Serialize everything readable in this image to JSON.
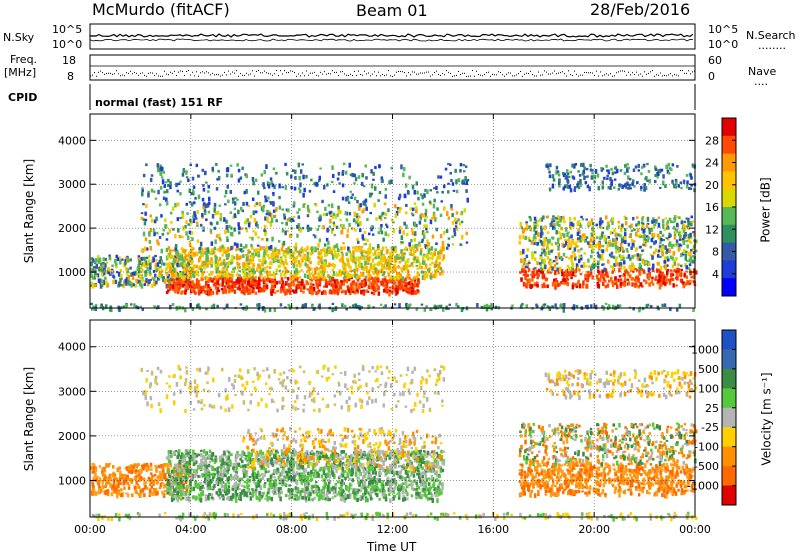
{
  "header": {
    "station": "McMurdo (fitACF)",
    "beam": "Beam 01",
    "date": "28/Feb/2016"
  },
  "aux_labels": {
    "nsky": "N.Sky",
    "nsearch": "N.Search",
    "nsearch_dots": "........",
    "freq": "Freq.",
    "freq_unit": "[MHz]",
    "nave": "Nave",
    "nave_dots": "....",
    "cpid": "CPID",
    "cpid_value": "normal (fast) 151 RF",
    "noise_ticks_left": [
      "10^5",
      "10^0"
    ],
    "noise_ticks_right": [
      "10^5",
      "10^0"
    ],
    "freq_ticks": [
      "18",
      "8"
    ],
    "nave_ticks": [
      "60",
      "0"
    ]
  },
  "chart_data": [
    {
      "type": "heatmap",
      "panel": "power",
      "ylabel": "Slant Range [km]",
      "yticks": [
        1000,
        2000,
        3000,
        4000
      ],
      "ylim": [
        180,
        4600
      ],
      "xlim": [
        0,
        24
      ],
      "colorbar": {
        "label": "Power [dB]",
        "ticks": [
          "28",
          "24",
          "20",
          "16",
          "12",
          "8",
          "4"
        ],
        "colors": [
          "#e30000",
          "#ff4a00",
          "#ff9a00",
          "#ffc300",
          "#d9d900",
          "#57b857",
          "#2f8f5f",
          "#355aa8",
          "#1f3ed8",
          "#0000ff"
        ]
      },
      "grid": true
    },
    {
      "type": "heatmap",
      "panel": "velocity",
      "ylabel": "Slant Range [km]",
      "yticks": [
        1000,
        2000,
        3000,
        4000
      ],
      "ylim": [
        180,
        4600
      ],
      "xlim": [
        0,
        24
      ],
      "colorbar": {
        "label": "Velocity [m s⁻¹]",
        "ticks": [
          "1000",
          "500",
          "100",
          "25",
          "-25",
          "-100",
          "-500",
          "-1000"
        ],
        "colors": [
          "#2050c8",
          "#356ab0",
          "#3c8c46",
          "#55c83c",
          "#b4b4b4",
          "#ffd000",
          "#ff9000",
          "#ff6a00",
          "#e00000"
        ]
      },
      "grid": true
    }
  ],
  "xaxis": {
    "label": "Time UT",
    "ticks": [
      "00:00",
      "04:00",
      "08:00",
      "12:00",
      "16:00",
      "20:00",
      "00:00"
    ]
  }
}
